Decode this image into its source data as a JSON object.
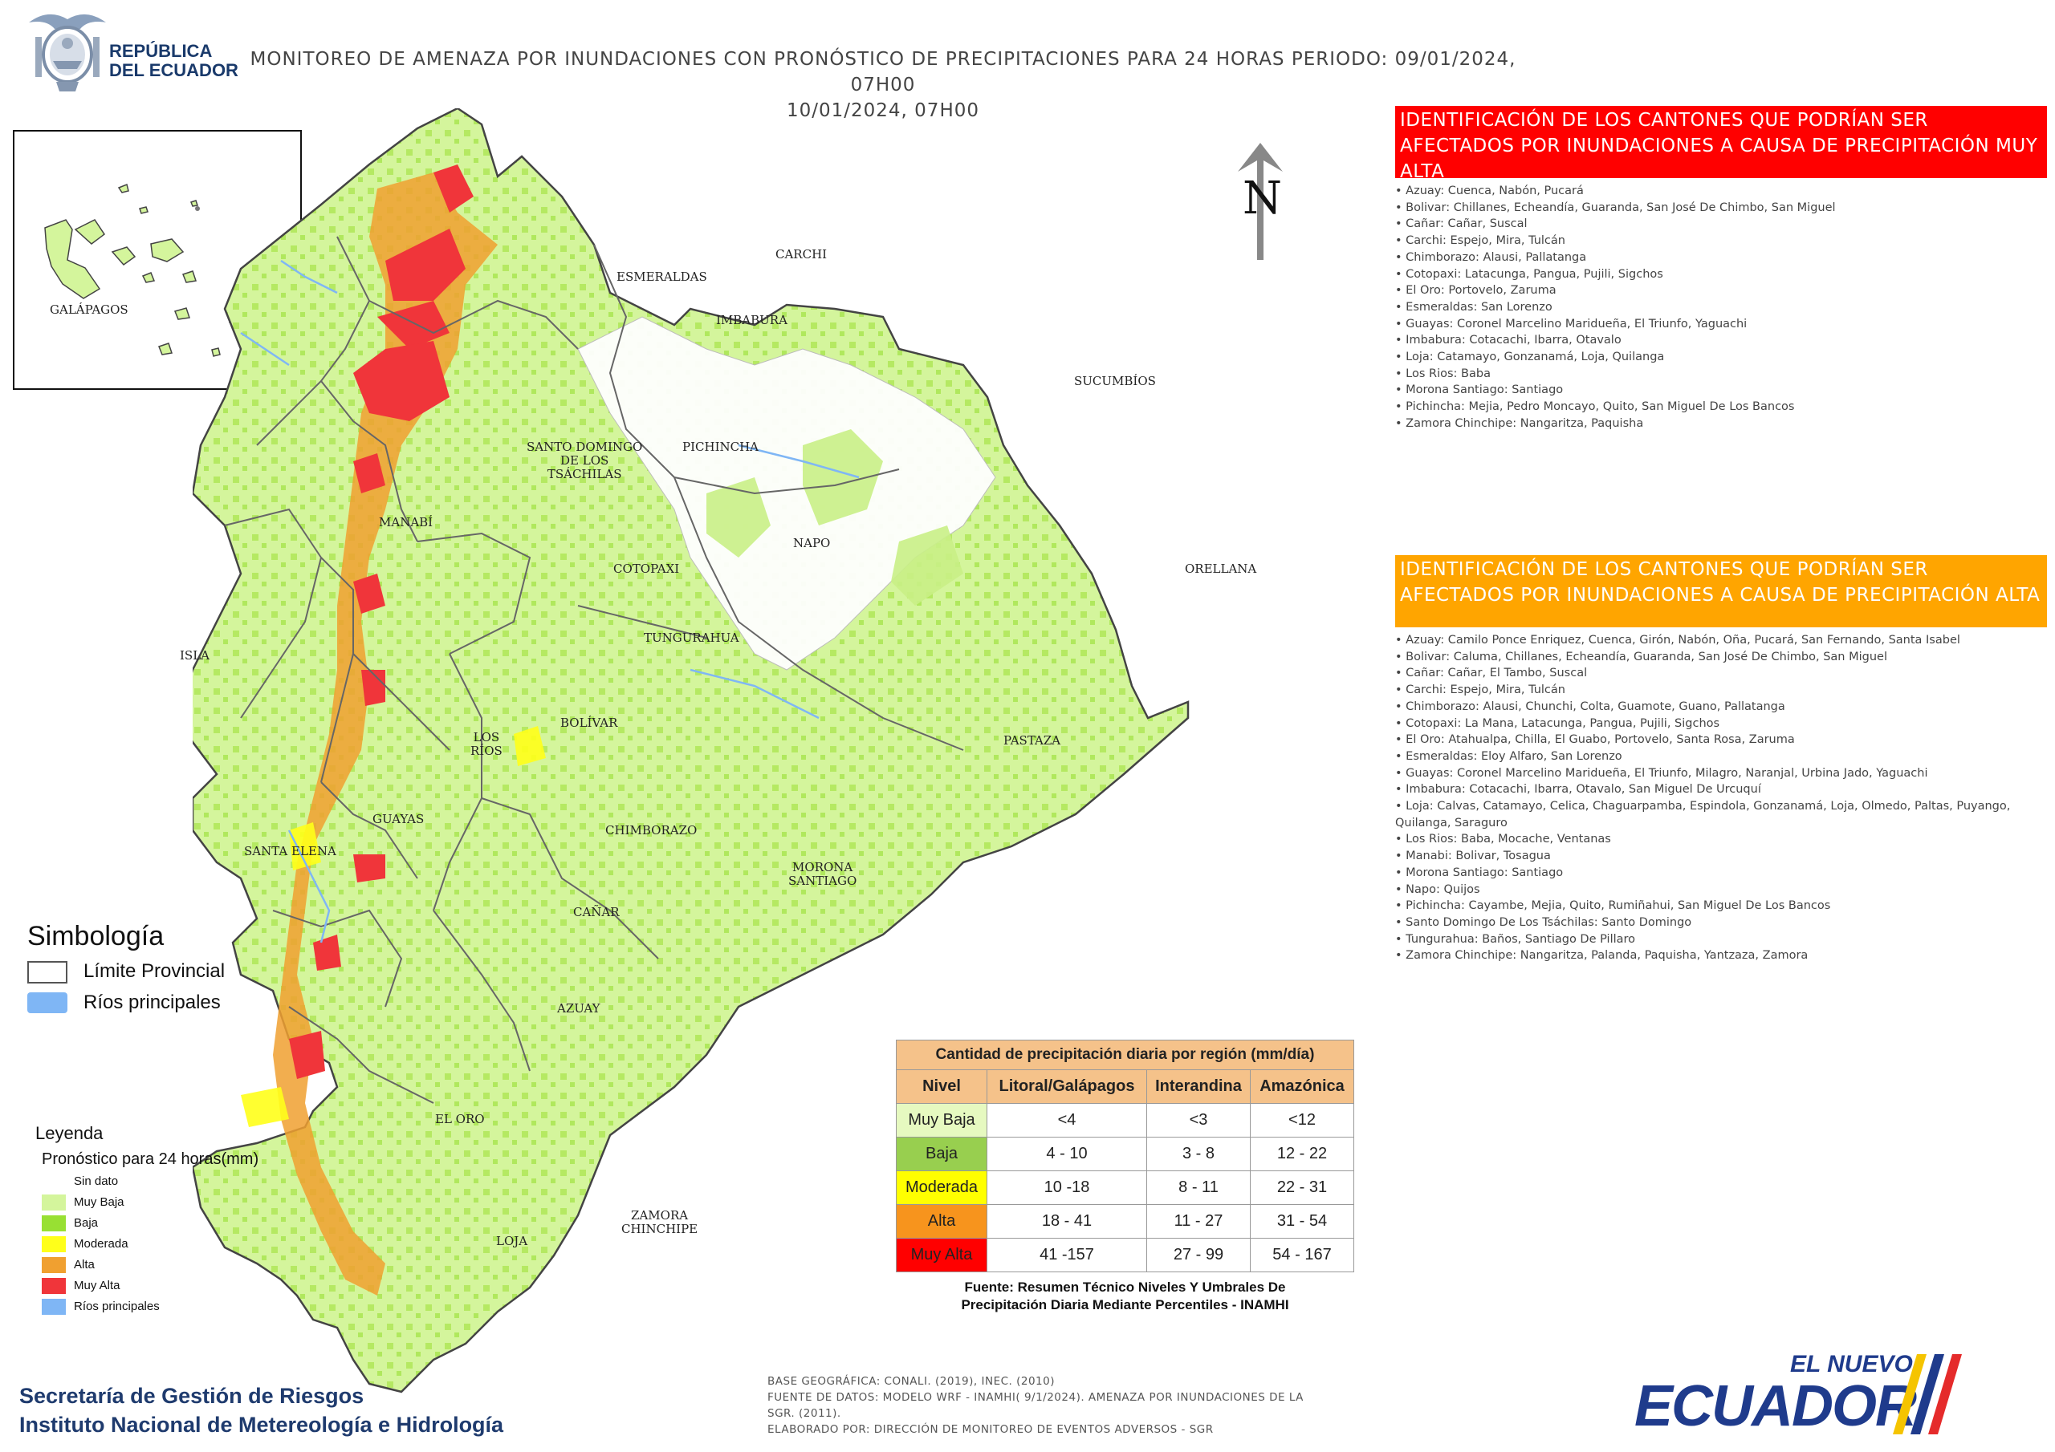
{
  "header": {
    "logo_line1": "REPÚBLICA",
    "logo_line2": "DEL ECUADOR",
    "title_line1": "MONITOREO DE AMENAZA POR INUNDACIONES  CON PRONÓSTICO DE  PRECIPITACIONES PARA 24 HORAS  PERIODO: 09/01/2024, 07H00",
    "title_line2": "10/01/2024, 07H00"
  },
  "north": "N",
  "inset": {
    "label": "GALÁPAGOS"
  },
  "map_labels": {
    "esmeraldas": "ESMERALDAS",
    "carchi": "CARCHI",
    "imbabura": "IMBABURA",
    "sucumbios": "SUCUMBÍOS",
    "santo_domingo": "SANTO DOMINGO\nDE LOS\nTSÁCHILAS",
    "pichincha": "PICHINCHA",
    "manabi": "MANABÍ",
    "napo": "NAPO",
    "orellana": "ORELLANA",
    "cotopaxi": "COTOPAXI",
    "isla": "ISLA",
    "tungurahua": "TUNGURAHUA",
    "bolivar": "BOLÍVAR",
    "los_rios": "LOS\nRÍOS",
    "pastaza": "PASTAZA",
    "guayas": "GUAYAS",
    "santa_elena": "SANTA ELENA",
    "chimborazo": "CHIMBORAZO",
    "morona": "MORONA\nSANTIAGO",
    "canar": "CAÑAR",
    "azuay": "AZUAY",
    "el_oro": "EL ORO",
    "loja": "LOJA",
    "zamora": "ZAMORA\nCHINCHIPE"
  },
  "panel_muy_alta": {
    "heading": "IDENTIFICACIÓN DE LOS CANTONES QUE PODRÍAN SER AFECTADOS POR INUNDACIONES  A CAUSA DE PRECIPITACIÓN MUY ALTA",
    "color": "#ff0000",
    "items": [
      "• Azuay: Cuenca, Nabón, Pucará",
      "• Bolivar: Chillanes, Echeandía, Guaranda, San José De Chimbo, San Miguel",
      "• Cañar: Cañar, Suscal",
      "• Carchi: Espejo, Mira, Tulcán",
      "• Chimborazo: Alausi, Pallatanga",
      "• Cotopaxi: Latacunga, Pangua, Pujili, Sigchos",
      "• El Oro: Portovelo, Zaruma",
      "• Esmeraldas: San Lorenzo",
      "• Guayas: Coronel Marcelino Maridueña, El Triunfo, Yaguachi",
      "• Imbabura: Cotacachi, Ibarra, Otavalo",
      "• Loja: Catamayo, Gonzanamá, Loja, Quilanga",
      "• Los Rios: Baba",
      "• Morona Santiago: Santiago",
      "• Pichincha: Mejia, Pedro Moncayo, Quito, San Miguel De Los Bancos",
      "• Zamora Chinchipe: Nangaritza, Paquisha"
    ]
  },
  "panel_alta": {
    "heading": "IDENTIFICACIÓN DE LOS CANTONES QUE  PODRÍAN SER AFECTADOS POR INUNDACIONES  A CAUSA DE PRECIPITACIÓN  ALTA",
    "color": "#ffa500",
    "items": [
      "• Azuay: Camilo Ponce Enriquez, Cuenca, Girón, Nabón, Oña, Pucará, San Fernando, Santa Isabel",
      "• Bolivar: Caluma, Chillanes, Echeandía, Guaranda, San José De Chimbo, San Miguel",
      "• Cañar: Cañar, El Tambo, Suscal",
      "• Carchi: Espejo, Mira, Tulcán",
      "• Chimborazo: Alausi, Chunchi, Colta, Guamote, Guano, Pallatanga",
      "• Cotopaxi: La Mana, Latacunga, Pangua, Pujili, Sigchos",
      "• El Oro: Atahualpa, Chilla, El Guabo, Portovelo, Santa Rosa, Zaruma",
      "• Esmeraldas: Eloy Alfaro, San Lorenzo",
      "• Guayas: Coronel Marcelino Maridueña, El Triunfo, Milagro, Naranjal, Urbina Jado, Yaguachi",
      "• Imbabura: Cotacachi, Ibarra, Otavalo, San Miguel De Urcuquí",
      "• Loja: Calvas, Catamayo, Celica, Chaguarpamba, Espindola, Gonzanamá, Loja, Olmedo, Paltas, Puyango,",
      "Quilanga, Saraguro",
      "• Los Rios: Baba, Mocache, Ventanas",
      "• Manabi: Bolivar, Tosagua",
      "• Morona Santiago: Santiago",
      "• Napo: Quijos",
      "• Pichincha: Cayambe, Mejia, Quito, Rumiñahui, San Miguel De Los Bancos",
      "• Santo Domingo De Los Tsáchilas: Santo Domingo",
      "• Tungurahua: Baños, Santiago De Pillaro",
      "• Zamora Chinchipe: Nangaritza, Palanda, Paquisha, Yantzaza, Zamora"
    ]
  },
  "simbologia": {
    "title": "Simbología",
    "limite": "Límite Provincial",
    "rios": "Ríos principales"
  },
  "leyenda": {
    "title": "Leyenda",
    "subtitle": "Pronóstico para 24 horas(mm)",
    "items": [
      {
        "label": "Sin dato",
        "color": "#ffffff"
      },
      {
        "label": "Muy Baja",
        "color": "#d4f59c"
      },
      {
        "label": "Baja",
        "color": "#98e033"
      },
      {
        "label": "Moderada",
        "color": "#ffff1a"
      },
      {
        "label": "Alta",
        "color": "#f0a030"
      },
      {
        "label": "Muy Alta",
        "color": "#f0353a"
      },
      {
        "label": "Ríos principales",
        "color": "#7fb6f5"
      }
    ]
  },
  "table": {
    "title": "Cantidad de precipitación diaria por región (mm/día)",
    "headers": [
      "Nivel",
      "Litoral/Galápagos",
      "Interandina",
      "Amazónica"
    ],
    "rows": [
      {
        "nivel": "Muy Baja",
        "color": "#e6f9c0",
        "litoral": "<4",
        "interandina": "<3",
        "amazonica": "<12"
      },
      {
        "nivel": "Baja",
        "color": "#98cf4f",
        "litoral": "4 - 10",
        "interandina": "3 - 8",
        "amazonica": "12 - 22"
      },
      {
        "nivel": "Moderada",
        "color": "#ffff00",
        "litoral": "10 -18",
        "interandina": "8 - 11",
        "amazonica": "22 - 31"
      },
      {
        "nivel": "Alta",
        "color": "#f7941d",
        "litoral": "18 - 41",
        "interandina": "11 - 27",
        "amazonica": "31 - 54"
      },
      {
        "nivel": "Muy Alta",
        "color": "#ff0000",
        "litoral": "41 -157",
        "interandina": "27 - 99",
        "amazonica": "54 - 167"
      }
    ],
    "source_line1": "Fuente: Resumen Técnico Niveles Y Umbrales De",
    "source_line2": "Precipitación Diaria Mediante Percentiles - INAMHI"
  },
  "footer": {
    "org_line1": "Secretaría de Gestión de Riesgos",
    "org_line2": "Instituto Nacional de Metereología e Hidrología",
    "base": "BASE GEOGRÁFICA: CONALI. (2019), INEC. (2010)",
    "fuente1": "FUENTE DE DATOS: MODELO WRF - INAMHI( 9/1/2024).  AMENAZA POR INUNDACIONES DE LA",
    "fuente2": "SGR. (2011).",
    "elaborado": "ELABORADO POR: DIRECCIÓN DE MONITOREO DE EVENTOS ADVERSOS - SGR",
    "brand_small": "EL NUEVO",
    "brand_big": "ECUADOR"
  }
}
